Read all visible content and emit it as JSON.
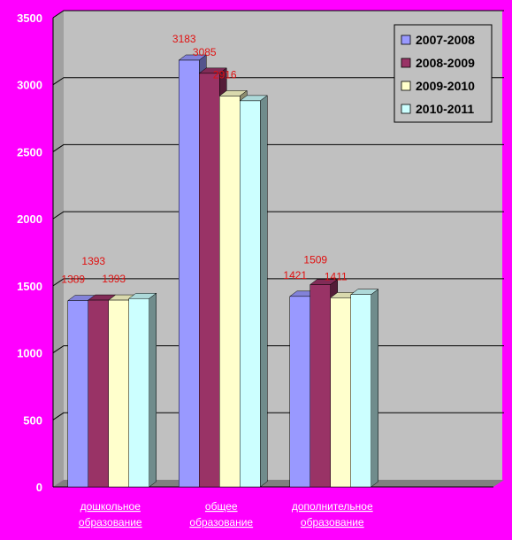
{
  "chart_data": {
    "type": "bar",
    "categories": [
      [
        "дошкольное",
        "образование"
      ],
      [
        "общее",
        "образование"
      ],
      [
        "дополнительное",
        "образование"
      ]
    ],
    "series": [
      {
        "name": "2007-2008",
        "values": [
          1389,
          3183,
          1421
        ],
        "color": "#9999ff"
      },
      {
        "name": "2008-2009",
        "values": [
          1393,
          3085,
          1509
        ],
        "color": "#993366"
      },
      {
        "name": "2009-2010",
        "values": [
          1393,
          2916,
          1411
        ],
        "color": "#ffffcc"
      },
      {
        "name": "2010-2011",
        "values": [
          1405,
          2880,
          1435
        ],
        "color": "#ccffff"
      }
    ],
    "data_labels": [
      {
        "text": "1389",
        "series": 0,
        "category": 0
      },
      {
        "text": "1393",
        "series": 1,
        "category": 0
      },
      {
        "text": "1393",
        "series": 2,
        "category": 0
      },
      {
        "text": "3183",
        "series": 0,
        "category": 1
      },
      {
        "text": "3085",
        "series": 1,
        "category": 1
      },
      {
        "text": "2916",
        "series": 2,
        "category": 1
      },
      {
        "text": "1421",
        "series": 0,
        "category": 2
      },
      {
        "text": "1509",
        "series": 1,
        "category": 2
      },
      {
        "text": "1411",
        "series": 2,
        "category": 2
      }
    ],
    "yticks": [
      "0",
      "500",
      "1000",
      "1500",
      "2000",
      "2500",
      "3000",
      "3500"
    ],
    "ylim": [
      0,
      3500
    ],
    "grid": true,
    "legend_position": "top-right",
    "colors": {
      "background": "#ff00ff",
      "plot": "#c0c0c0",
      "grid": "#000000",
      "label": "#e01010"
    }
  }
}
